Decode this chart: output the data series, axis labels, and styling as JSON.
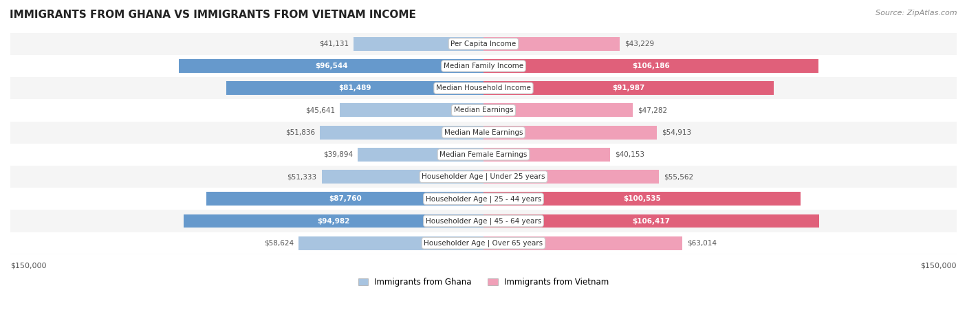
{
  "title": "IMMIGRANTS FROM GHANA VS IMMIGRANTS FROM VIETNAM INCOME",
  "source": "Source: ZipAtlas.com",
  "categories": [
    "Per Capita Income",
    "Median Family Income",
    "Median Household Income",
    "Median Earnings",
    "Median Male Earnings",
    "Median Female Earnings",
    "Householder Age | Under 25 years",
    "Householder Age | 25 - 44 years",
    "Householder Age | 45 - 64 years",
    "Householder Age | Over 65 years"
  ],
  "ghana_values": [
    41131,
    96544,
    81489,
    45641,
    51836,
    39894,
    51333,
    87760,
    94982,
    58624
  ],
  "vietnam_values": [
    43229,
    106186,
    91987,
    47282,
    54913,
    40153,
    55562,
    100535,
    106417,
    63014
  ],
  "ghana_labels": [
    "$41,131",
    "$96,544",
    "$81,489",
    "$45,641",
    "$51,836",
    "$39,894",
    "$51,333",
    "$87,760",
    "$94,982",
    "$58,624"
  ],
  "vietnam_labels": [
    "$43,229",
    "$106,186",
    "$91,987",
    "$47,282",
    "$54,913",
    "$40,153",
    "$55,562",
    "$100,535",
    "$106,417",
    "$63,014"
  ],
  "ghana_color_light": "#a8c4e0",
  "ghana_color_dark": "#6699cc",
  "vietnam_color_light": "#f0a0b8",
  "vietnam_color_dark": "#e0607a",
  "max_value": 150000,
  "label_color_inside": "#ffffff",
  "label_color_outside": "#555555",
  "background_row_odd": "#f5f5f5",
  "background_row_even": "#ffffff",
  "legend_ghana": "Immigrants from Ghana",
  "legend_vietnam": "Immigrants from Vietnam",
  "ghana_inside_threshold": 70000,
  "vietnam_inside_threshold": 70000
}
